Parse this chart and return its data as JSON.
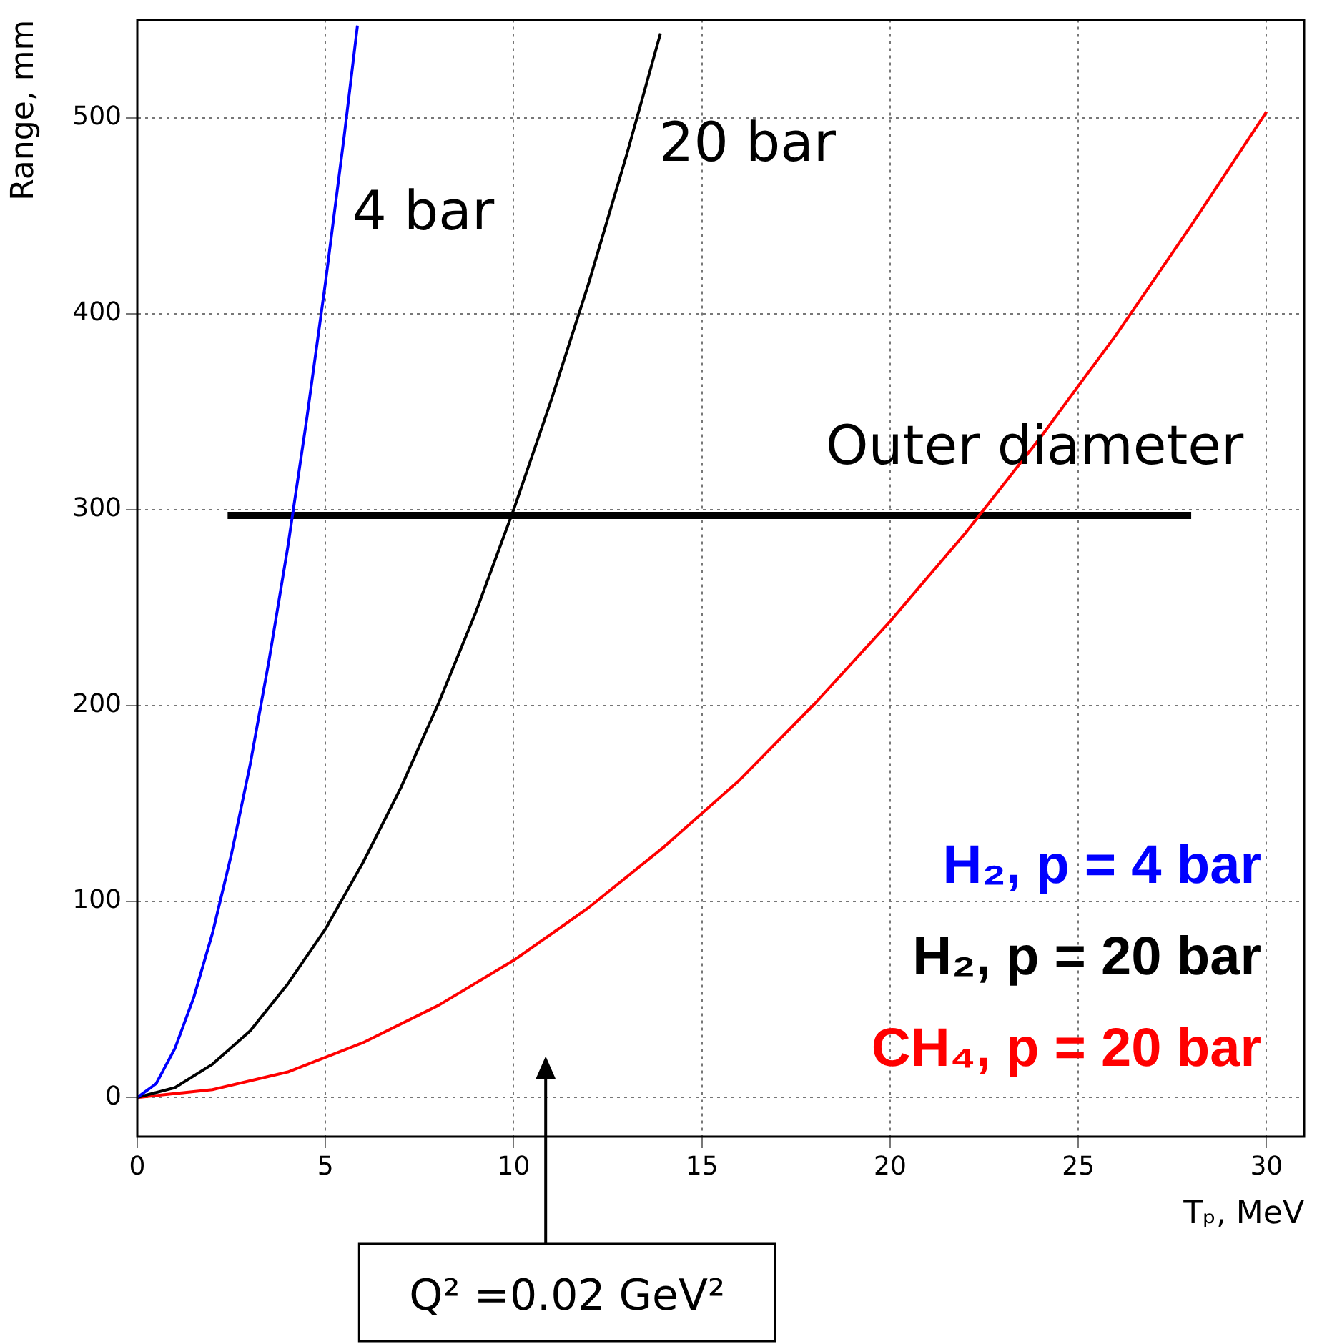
{
  "chart_data": {
    "type": "line",
    "xlabel": "Tₚ, MeV",
    "ylabel": "Range, mm",
    "xlim": [
      0,
      31
    ],
    "xticks": [
      0,
      5,
      10,
      15,
      20,
      25,
      30
    ],
    "ylim": [
      -20,
      550
    ],
    "yticks": [
      0,
      100,
      200,
      300,
      400,
      500
    ],
    "grid": true,
    "legend": "bottom right",
    "marker": "none",
    "line_style": "solid",
    "series": [
      {
        "name": "H₂, p = 4 bar",
        "color": "#0000ff",
        "x": [
          0,
          0.5,
          1,
          1.5,
          2,
          2.5,
          3,
          3.5,
          4,
          4.5,
          5,
          5.5,
          5.85
        ],
        "values": [
          0,
          7,
          25,
          51,
          84,
          124,
          170,
          223,
          281,
          346,
          416,
          491,
          547
        ]
      },
      {
        "name": "H₂, p = 20 bar",
        "color": "#000000",
        "x": [
          0,
          1,
          2,
          3,
          4,
          5,
          6,
          7,
          8,
          9,
          10,
          11,
          12,
          13,
          13.9
        ],
        "values": [
          0,
          5,
          17,
          34,
          58,
          86,
          120,
          158,
          201,
          248,
          300,
          356,
          416,
          481,
          543
        ]
      },
      {
        "name": "CH₄, p = 20 bar",
        "color": "#ff0000",
        "x": [
          0,
          2,
          4,
          6,
          8,
          10,
          12,
          14,
          16,
          18,
          20,
          22,
          24,
          26,
          28,
          30
        ],
        "values": [
          0,
          4,
          13,
          28,
          47,
          70,
          97,
          128,
          162,
          201,
          243,
          288,
          337,
          389,
          445,
          503
        ]
      },
      {
        "color": "#000000",
        "x": [
          2.4,
          28
        ],
        "values": [
          297,
          297
        ]
      }
    ],
    "annotations": [
      "4 bar",
      "20 bar",
      "Outer diameter",
      "Q² =0.02 GeV²"
    ]
  }
}
